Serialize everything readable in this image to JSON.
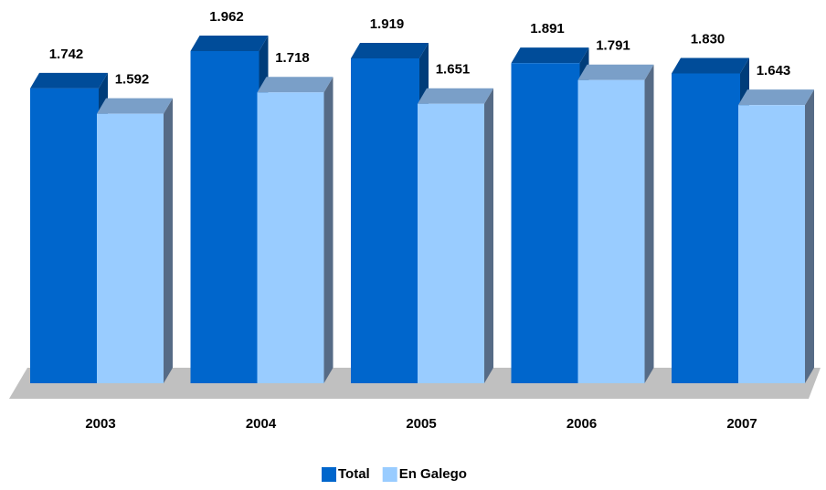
{
  "chart_data": {
    "type": "bar3d",
    "categories": [
      "2003",
      "2004",
      "2005",
      "2006",
      "2007"
    ],
    "series": [
      {
        "name": "Total",
        "color": "#0066cc",
        "top_color": "#004c99",
        "side_color": "#003d7a",
        "values": [
          1742,
          1962,
          1919,
          1891,
          1830
        ],
        "value_labels": [
          "1.742",
          "1.962",
          "1.919",
          "1.891",
          "1.830"
        ]
      },
      {
        "name": "En Galego",
        "color": "#99ccff",
        "top_color": "#7a9fc8",
        "side_color": "#566b86",
        "values": [
          1592,
          1718,
          1651,
          1791,
          1643
        ],
        "value_labels": [
          "1.592",
          "1.718",
          "1.651",
          "1.791",
          "1.643"
        ]
      }
    ],
    "legend": "bottom"
  }
}
